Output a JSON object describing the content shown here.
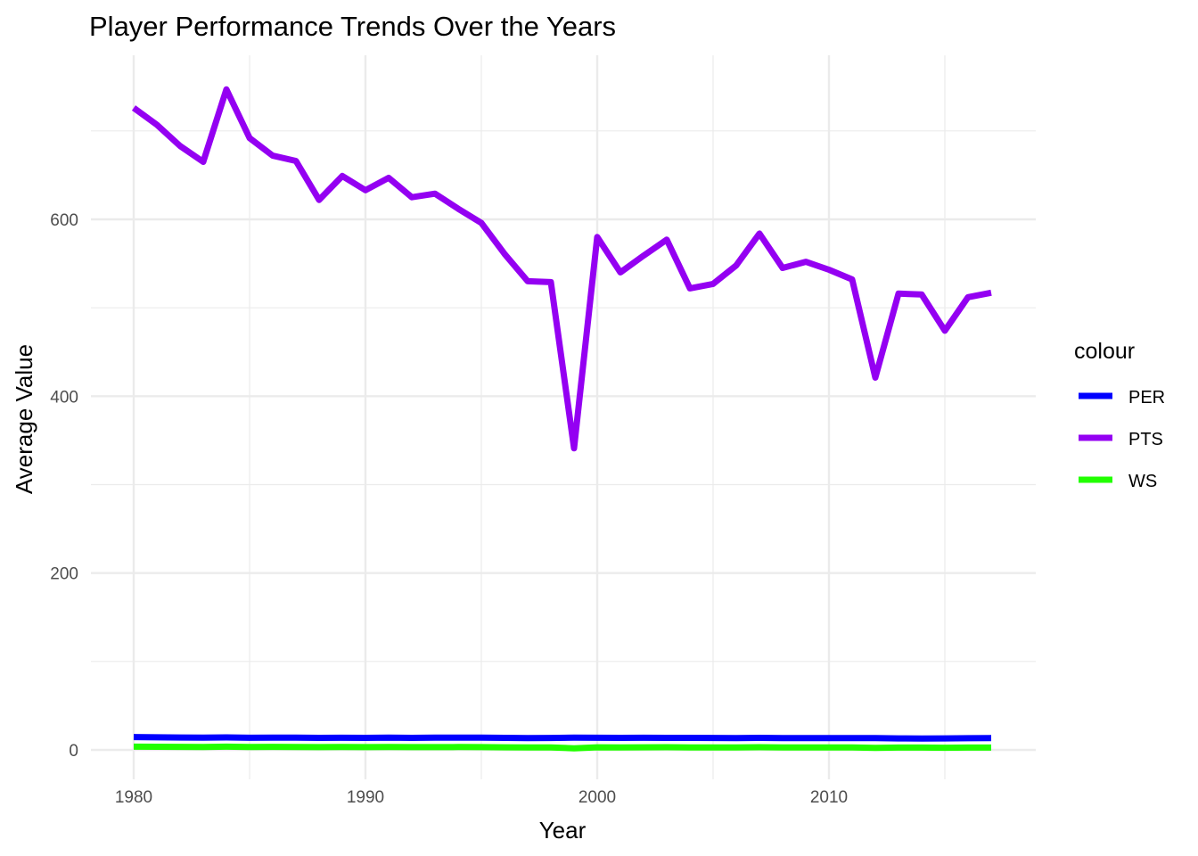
{
  "chart_data": {
    "type": "line",
    "title": "Player Performance Trends Over the Years",
    "xlabel": "Year",
    "ylabel": "Average Value",
    "xlim": [
      1980,
      2017
    ],
    "ylim": [
      0,
      750
    ],
    "x_ticks": [
      1980,
      1990,
      2000,
      2010
    ],
    "y_ticks": [
      0,
      200,
      400,
      600
    ],
    "grid": true,
    "legend": {
      "title": "colour",
      "position": "right"
    },
    "x": [
      1980,
      1981,
      1982,
      1983,
      1984,
      1985,
      1986,
      1987,
      1988,
      1989,
      1990,
      1991,
      1992,
      1993,
      1994,
      1995,
      1996,
      1997,
      1998,
      1999,
      2000,
      2001,
      2002,
      2003,
      2004,
      2005,
      2006,
      2007,
      2008,
      2009,
      2010,
      2011,
      2012,
      2013,
      2014,
      2015,
      2016,
      2017
    ],
    "series": [
      {
        "name": "PER",
        "color": "#0000ff",
        "values": [
          14.5,
          14.2,
          14.0,
          13.8,
          14.1,
          13.7,
          13.9,
          13.8,
          13.6,
          13.7,
          13.6,
          13.9,
          13.6,
          13.8,
          13.9,
          13.8,
          13.6,
          13.4,
          13.5,
          13.8,
          13.7,
          13.6,
          13.7,
          13.6,
          13.6,
          13.5,
          13.4,
          13.6,
          13.3,
          13.4,
          13.3,
          13.4,
          13.3,
          13.0,
          12.8,
          13.0,
          13.2,
          13.3
        ]
      },
      {
        "name": "PTS",
        "color": "#9400f2",
        "values": [
          726,
          707,
          683,
          665,
          747,
          692,
          672,
          666,
          622,
          649,
          633,
          647,
          625,
          629,
          612,
          596,
          561,
          530,
          529,
          341,
          580,
          540,
          559,
          577,
          522,
          527,
          548,
          584,
          545,
          552,
          543,
          532,
          421,
          516,
          515,
          474,
          512,
          517
        ]
      },
      {
        "name": "WS",
        "color": "#22ff00",
        "values": [
          3.6,
          3.5,
          3.4,
          3.3,
          3.6,
          3.3,
          3.4,
          3.3,
          3.1,
          3.2,
          3.1,
          3.2,
          3.1,
          3.1,
          3.2,
          3.1,
          2.9,
          2.8,
          2.8,
          1.8,
          2.9,
          2.8,
          2.9,
          3.0,
          2.7,
          2.8,
          2.8,
          3.0,
          2.8,
          2.8,
          2.8,
          2.7,
          2.2,
          2.6,
          2.6,
          2.4,
          2.6,
          2.6
        ]
      }
    ]
  }
}
